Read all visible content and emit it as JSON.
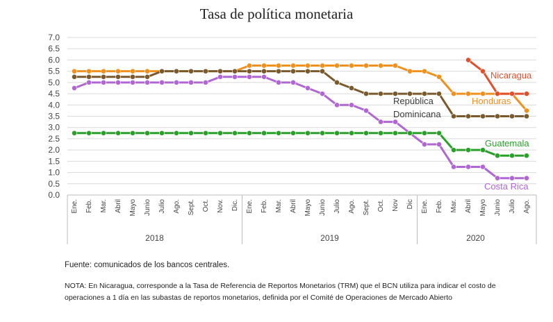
{
  "chart_data": {
    "type": "line",
    "title": "Tasa de política monetaria",
    "ylim": [
      0,
      7
    ],
    "y_ticks": [
      "7.0",
      "6.5",
      "6.0",
      "5.5",
      "5.0",
      "4.5",
      "4.0",
      "3.5",
      "3.0",
      "2.5",
      "2.0",
      "1.5",
      "1.0",
      "0.5",
      "0.0"
    ],
    "categories": [
      "Ene.",
      "Feb.",
      "Mar.",
      "Abril",
      "Mayo",
      "Junio",
      "Julio",
      "Ago.",
      "Sept.",
      "Oct.",
      "Nov.",
      "Dic.",
      "Ene.",
      "Feb.",
      "Mar.",
      "Abril",
      "Mayo",
      "Junio",
      "Julio",
      "Ago.",
      "Sept.",
      "Oct.",
      "Nov",
      "Dic",
      "Ene.",
      "Feb.",
      "Mar.",
      "Abril",
      "Mayo",
      "Junio",
      "Julio",
      "Ago."
    ],
    "years": [
      {
        "label": "2018",
        "start": 0,
        "end": 11
      },
      {
        "label": "2019",
        "start": 12,
        "end": 23
      },
      {
        "label": "2020",
        "start": 24,
        "end": 31
      }
    ],
    "grid": true,
    "series": [
      {
        "name": "Honduras",
        "color": "#f0901e",
        "values": [
          5.5,
          5.5,
          5.5,
          5.5,
          5.5,
          5.5,
          5.5,
          5.5,
          5.5,
          5.5,
          5.5,
          5.5,
          5.75,
          5.75,
          5.75,
          5.75,
          5.75,
          5.75,
          5.75,
          5.75,
          5.75,
          5.75,
          5.75,
          5.5,
          5.5,
          5.25,
          4.5,
          4.5,
          4.5,
          4.5,
          4.5,
          3.75
        ]
      },
      {
        "name": "República Dominicana",
        "color": "#7a5a2c",
        "values": [
          5.25,
          5.25,
          5.25,
          5.25,
          5.25,
          5.25,
          5.5,
          5.5,
          5.5,
          5.5,
          5.5,
          5.5,
          5.5,
          5.5,
          5.5,
          5.5,
          5.5,
          5.5,
          5.0,
          4.75,
          4.5,
          4.5,
          4.5,
          4.5,
          4.5,
          4.5,
          3.5,
          3.5,
          3.5,
          3.5,
          3.5,
          3.5
        ]
      },
      {
        "name": "Costa Rica",
        "color": "#b067d4",
        "values": [
          4.75,
          5.0,
          5.0,
          5.0,
          5.0,
          5.0,
          5.0,
          5.0,
          5.0,
          5.0,
          5.25,
          5.25,
          5.25,
          5.25,
          5.0,
          5.0,
          4.75,
          4.5,
          4.0,
          4.0,
          3.75,
          3.25,
          3.25,
          2.75,
          2.25,
          2.25,
          1.25,
          1.25,
          1.25,
          0.75,
          0.75,
          0.75
        ]
      },
      {
        "name": "Guatemala",
        "color": "#2aa02a",
        "values": [
          2.75,
          2.75,
          2.75,
          2.75,
          2.75,
          2.75,
          2.75,
          2.75,
          2.75,
          2.75,
          2.75,
          2.75,
          2.75,
          2.75,
          2.75,
          2.75,
          2.75,
          2.75,
          2.75,
          2.75,
          2.75,
          2.75,
          2.75,
          2.75,
          2.75,
          2.75,
          2.0,
          2.0,
          2.0,
          1.75,
          1.75,
          1.75
        ]
      },
      {
        "name": "Nicaragua",
        "color": "#e0502a",
        "values": [
          null,
          null,
          null,
          null,
          null,
          null,
          null,
          null,
          null,
          null,
          null,
          null,
          null,
          null,
          null,
          null,
          null,
          null,
          null,
          null,
          null,
          null,
          null,
          null,
          null,
          null,
          null,
          6.0,
          5.5,
          4.5,
          4.5,
          4.5
        ]
      }
    ],
    "annotations": [
      {
        "text": "Nicaragua",
        "series": "Nicaragua"
      },
      {
        "text": "Honduras",
        "series": "Honduras"
      },
      {
        "text": "República",
        "series": "República Dominicana"
      },
      {
        "text": "Dominicana",
        "series": "República Dominicana"
      },
      {
        "text": "Guatemala",
        "series": "Guatemala"
      },
      {
        "text": "Costa Rica",
        "series": "Costa Rica"
      }
    ]
  },
  "source": "Fuente: comunicados de los bancos centrales.",
  "note": "NOTA: En Nicaragua, corresponde a la Tasa de Referencia de Reportos Monetarios (TRM) que el BCN utiliza para indicar el costo de operaciones a 1 día en las subastas de reportos monetarios, definida por el Comité de Operaciones de Mercado Abierto"
}
